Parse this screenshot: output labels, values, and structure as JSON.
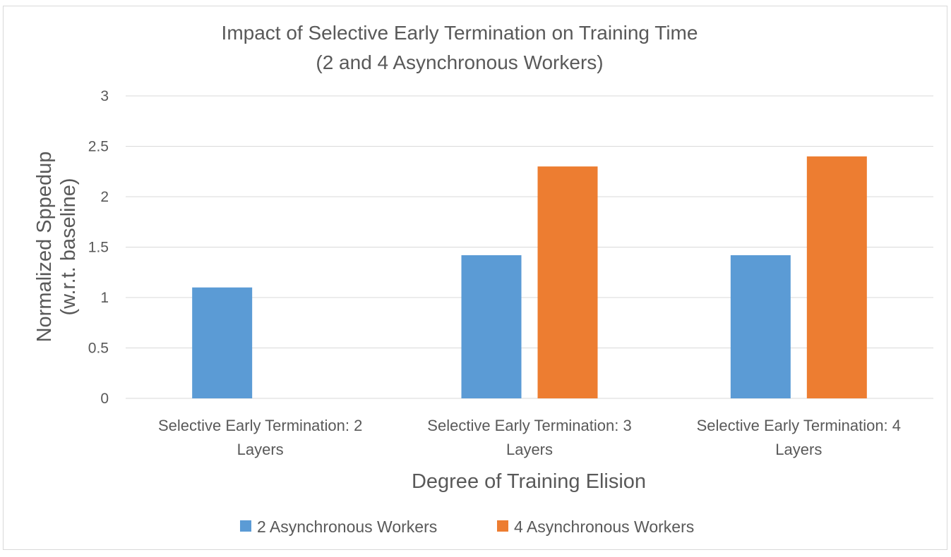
{
  "chart_data": {
    "type": "bar",
    "title_lines": [
      "Impact of Selective Early Termination on Training Time",
      "(2 and 4 Asynchronous Workers)"
    ],
    "xlabel": "Degree of Training Elision",
    "ylabel_lines": [
      "Normalized Sppedup",
      "(w.r.t. baseline)"
    ],
    "categories": [
      [
        "Selective Early Termination: 2",
        "Layers"
      ],
      [
        "Selective Early Termination: 3",
        "Layers"
      ],
      [
        "Selective Early Termination: 4",
        "Layers"
      ]
    ],
    "series": [
      {
        "name": "2 Asynchronous Workers",
        "color": "#5b9bd5",
        "values": [
          1.1,
          1.42,
          1.42
        ]
      },
      {
        "name": "4 Asynchronous Workers",
        "color": "#ed7d31",
        "values": [
          null,
          2.3,
          2.4
        ]
      }
    ],
    "ylim": [
      0,
      3
    ],
    "yticks": [
      "0",
      "0.5",
      "1",
      "1.5",
      "2",
      "2.5",
      "3"
    ],
    "grid": true,
    "legend_position": "bottom"
  }
}
